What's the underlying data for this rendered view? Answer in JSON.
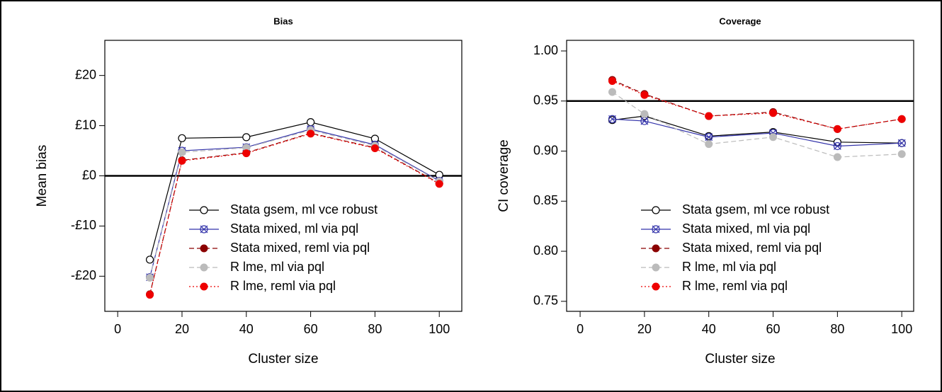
{
  "chart_data": [
    {
      "type": "line",
      "title": "Bias",
      "xlabel": "Cluster size",
      "ylabel": "Mean bias",
      "x": [
        10,
        20,
        40,
        60,
        80,
        100
      ],
      "series": [
        {
          "name": "Stata gsem, ml vce robust",
          "color": "#000000",
          "marker": "open-circle",
          "dash": "solid",
          "values": [
            -16.7,
            7.5,
            7.7,
            10.7,
            7.4,
            0.2
          ]
        },
        {
          "name": "Stata mixed, ml via pql",
          "color": "#3333aa",
          "marker": "x-circle",
          "dash": "solid",
          "values": [
            -20.2,
            5.0,
            5.7,
            9.3,
            6.2,
            -1.0
          ]
        },
        {
          "name": "Stata mixed, reml via pql",
          "color": "#8b0000",
          "marker": "filled-circle",
          "dash": "dashed",
          "values": [
            -23.6,
            3.1,
            4.6,
            8.5,
            5.6,
            -1.5
          ]
        },
        {
          "name": "R lme, ml via pql",
          "color": "#bbbbbb",
          "marker": "filled-circle",
          "dash": "dashed",
          "values": [
            -20.3,
            4.7,
            5.6,
            9.1,
            6.0,
            -1.1
          ]
        },
        {
          "name": "R lme, reml via pql",
          "color": "#ee0000",
          "marker": "filled-circle",
          "dash": "dotted",
          "values": [
            -23.7,
            3.0,
            4.5,
            8.4,
            5.5,
            -1.6
          ]
        }
      ],
      "xlim": [
        -4,
        107
      ],
      "ylim": [
        -27,
        27
      ],
      "xticks": [
        0,
        20,
        40,
        60,
        80,
        100
      ],
      "yticks": [
        {
          "value": -20,
          "label": "-£20"
        },
        {
          "value": -10,
          "label": "-£10"
        },
        {
          "value": 0,
          "label": "£0"
        },
        {
          "value": 10,
          "label": "£10"
        },
        {
          "value": 20,
          "label": "£20"
        }
      ],
      "reference_line": 0,
      "legend": "bottom-right"
    },
    {
      "type": "line",
      "title": "Coverage",
      "xlabel": "Cluster size",
      "ylabel": "CI coverage",
      "x": [
        10,
        20,
        40,
        60,
        80,
        100
      ],
      "series": [
        {
          "name": "Stata gsem, ml vce robust",
          "color": "#000000",
          "marker": "open-circle",
          "dash": "solid",
          "values": [
            0.931,
            0.935,
            0.915,
            0.919,
            0.909,
            0.908
          ]
        },
        {
          "name": "Stata mixed, ml via pql",
          "color": "#3333aa",
          "marker": "x-circle",
          "dash": "solid",
          "values": [
            0.932,
            0.93,
            0.914,
            0.918,
            0.905,
            0.908
          ]
        },
        {
          "name": "Stata mixed, reml via pql",
          "color": "#8b0000",
          "marker": "filled-circle",
          "dash": "dashed",
          "values": [
            0.971,
            0.957,
            0.935,
            0.939,
            0.922,
            0.932
          ]
        },
        {
          "name": "R lme, ml via pql",
          "color": "#bbbbbb",
          "marker": "filled-circle",
          "dash": "dashed",
          "values": [
            0.959,
            0.937,
            0.907,
            0.914,
            0.894,
            0.897
          ]
        },
        {
          "name": "R lme, reml via pql",
          "color": "#ee0000",
          "marker": "filled-circle",
          "dash": "dotted",
          "values": [
            0.97,
            0.956,
            0.935,
            0.938,
            0.922,
            0.932
          ]
        }
      ],
      "xlim": [
        -4.2,
        103.7
      ],
      "ylim": [
        0.74,
        1.0106
      ],
      "xticks": [
        0,
        20,
        40,
        60,
        80,
        100
      ],
      "yticks": [
        {
          "value": 0.75,
          "label": "0.75"
        },
        {
          "value": 0.8,
          "label": "0.80"
        },
        {
          "value": 0.85,
          "label": "0.85"
        },
        {
          "value": 0.9,
          "label": "0.90"
        },
        0.95,
        {
          "value": 1,
          "label": "1.00"
        }
      ],
      "reference_line": 0.95,
      "legend": "bottom-right"
    }
  ]
}
